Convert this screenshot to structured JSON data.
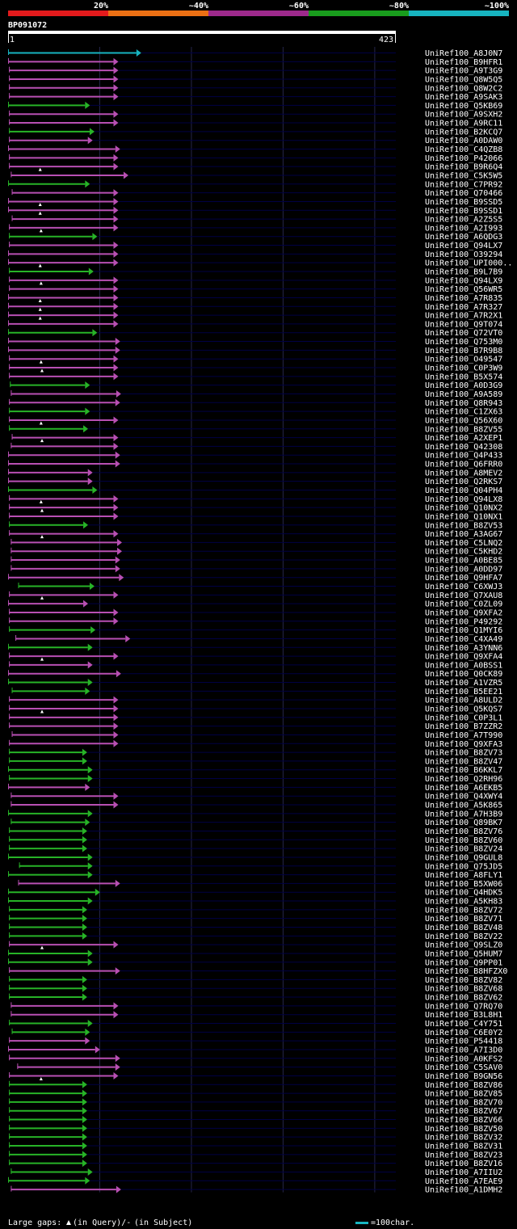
{
  "legend": {
    "bands": [
      {
        "label": "20%",
        "color": "#e31a1c"
      },
      {
        "label": "~40%",
        "color": "#ec7014"
      },
      {
        "label": "~60%",
        "color": "#9e2a8c"
      },
      {
        "label": "~80%",
        "color": "#199d1d"
      },
      {
        "label": "~100%",
        "color": "#17b4c0"
      }
    ]
  },
  "query": {
    "name": "BP091072",
    "start_label": "1",
    "end_label": "423",
    "length": 423
  },
  "footer": {
    "large_gaps": "Large gaps:",
    "query_note": "(in Query)/-",
    "subject_note": "(in Subject)",
    "scale_note": "=100char."
  },
  "colors": {
    "cyan": "#17b4c0",
    "magenta": "#b84fb3",
    "green": "#27b327",
    "grid": "#25254a",
    "gap": "#000044"
  },
  "hits": [
    {
      "id": "UniRef100_A8J0N7",
      "c": "cyan",
      "s": 1,
      "e": 140
    },
    {
      "id": "UniRef100_B9HFR1",
      "c": "magenta",
      "s": 1,
      "e": 115
    },
    {
      "id": "UniRef100_A9T3G9",
      "c": "magenta",
      "s": 2,
      "e": 115
    },
    {
      "id": "UniRef100_Q8W5Q5",
      "c": "magenta",
      "s": 2,
      "e": 115
    },
    {
      "id": "UniRef100_Q8W2C2",
      "c": "magenta",
      "s": 2,
      "e": 115
    },
    {
      "id": "UniRef100_A9SAK3",
      "c": "magenta",
      "s": 2,
      "e": 115
    },
    {
      "id": "UniRef100_Q5KB69",
      "c": "green",
      "s": 1,
      "e": 84
    },
    {
      "id": "UniRef100_A9SXH2",
      "c": "magenta",
      "s": 2,
      "e": 115
    },
    {
      "id": "UniRef100_A9RC11",
      "c": "magenta",
      "s": 2,
      "e": 115
    },
    {
      "id": "UniRef100_B2KCQ7",
      "c": "green",
      "s": 2,
      "e": 89
    },
    {
      "id": "UniRef100_A0DAW0",
      "c": "magenta",
      "s": 2,
      "e": 87
    },
    {
      "id": "UniRef100_C4QZB8",
      "c": "magenta",
      "s": 1,
      "e": 117
    },
    {
      "id": "UniRef100_P42066",
      "c": "magenta",
      "s": 2,
      "e": 115
    },
    {
      "id": "UniRef100_B9R6Q4",
      "c": "magenta",
      "s": 2,
      "e": 115,
      "q": 35
    },
    {
      "id": "UniRef100_C5K5W5",
      "c": "magenta",
      "s": 4,
      "e": 126
    },
    {
      "id": "UniRef100_C7PR92",
      "c": "green",
      "s": 1,
      "e": 84
    },
    {
      "id": "UniRef100_Q70466",
      "c": "magenta",
      "s": 5,
      "e": 115
    },
    {
      "id": "UniRef100_B9SSD5",
      "c": "magenta",
      "s": 1,
      "e": 115,
      "q": 35
    },
    {
      "id": "UniRef100_B9SSD1",
      "c": "magenta",
      "s": 1,
      "e": 115,
      "q": 35
    },
    {
      "id": "UniRef100_A2Z5S5",
      "c": "magenta",
      "s": 5,
      "e": 115
    },
    {
      "id": "UniRef100_A2I993",
      "c": "magenta",
      "s": 2,
      "e": 115,
      "q": 36
    },
    {
      "id": "UniRef100_A6QDG3",
      "c": "green",
      "s": 2,
      "e": 92
    },
    {
      "id": "UniRef100_Q94LX7",
      "c": "magenta",
      "s": 2,
      "e": 115
    },
    {
      "id": "UniRef100_O39294",
      "c": "magenta",
      "s": 1,
      "e": 115
    },
    {
      "id": "UniRef100_UPI000..",
      "c": "magenta",
      "s": 1,
      "e": 115,
      "q": 35
    },
    {
      "id": "UniRef100_B9L7B9",
      "c": "green",
      "s": 2,
      "e": 88
    },
    {
      "id": "UniRef100_Q94LX9",
      "c": "magenta",
      "s": 2,
      "e": 115,
      "q": 36
    },
    {
      "id": "UniRef100_Q56WR5",
      "c": "magenta",
      "s": 2,
      "e": 115
    },
    {
      "id": "UniRef100_A7R835",
      "c": "magenta",
      "s": 1,
      "e": 115,
      "q": 35
    },
    {
      "id": "UniRef100_A7R327",
      "c": "magenta",
      "s": 1,
      "e": 115,
      "q": 35
    },
    {
      "id": "UniRef100_A7R2X1",
      "c": "magenta",
      "s": 1,
      "e": 115,
      "q": 35
    },
    {
      "id": "UniRef100_Q9T074",
      "c": "magenta",
      "s": 1,
      "e": 115
    },
    {
      "id": "UniRef100_Q72VT0",
      "c": "green",
      "s": 1,
      "e": 92
    },
    {
      "id": "UniRef100_Q753M0",
      "c": "magenta",
      "s": 1,
      "e": 117
    },
    {
      "id": "UniRef100_B7R9B8",
      "c": "magenta",
      "s": 1,
      "e": 117
    },
    {
      "id": "UniRef100_O49547",
      "c": "magenta",
      "s": 2,
      "e": 115,
      "q": 36
    },
    {
      "id": "UniRef100_C0P3W9",
      "c": "magenta",
      "s": 2,
      "e": 115,
      "q": 37
    },
    {
      "id": "UniRef100_B5X574",
      "c": "magenta",
      "s": 2,
      "e": 115
    },
    {
      "id": "UniRef100_A0D3G9",
      "c": "green",
      "s": 3,
      "e": 84
    },
    {
      "id": "UniRef100_A9A589",
      "c": "magenta",
      "s": 4,
      "e": 118
    },
    {
      "id": "UniRef100_Q8R943",
      "c": "magenta",
      "s": 2,
      "e": 117
    },
    {
      "id": "UniRef100_C1ZX63",
      "c": "green",
      "s": 2,
      "e": 84
    },
    {
      "id": "UniRef100_Q56X60",
      "c": "magenta",
      "s": 2,
      "e": 115,
      "q": 36
    },
    {
      "id": "UniRef100_B8ZV55",
      "c": "green",
      "s": 2,
      "e": 82
    },
    {
      "id": "UniRef100_A2XEP1",
      "c": "magenta",
      "s": 5,
      "e": 115,
      "q": 37
    },
    {
      "id": "UniRef100_Q42308",
      "c": "magenta",
      "s": 4,
      "e": 115
    },
    {
      "id": "UniRef100_Q4P433",
      "c": "magenta",
      "s": 1,
      "e": 117
    },
    {
      "id": "UniRef100_Q6FRR0",
      "c": "magenta",
      "s": 1,
      "e": 117
    },
    {
      "id": "UniRef100_A8MEV2",
      "c": "magenta",
      "s": 1,
      "e": 87
    },
    {
      "id": "UniRef100_Q2RKS7",
      "c": "magenta",
      "s": 1,
      "e": 87
    },
    {
      "id": "UniRef100_Q04PH4",
      "c": "green",
      "s": 1,
      "e": 92
    },
    {
      "id": "UniRef100_Q94LX8",
      "c": "magenta",
      "s": 2,
      "e": 115,
      "q": 36
    },
    {
      "id": "UniRef100_Q10NX2",
      "c": "magenta",
      "s": 2,
      "e": 115,
      "q": 37
    },
    {
      "id": "UniRef100_Q10NX1",
      "c": "magenta",
      "s": 2,
      "e": 115
    },
    {
      "id": "UniRef100_B8ZV53",
      "c": "green",
      "s": 2,
      "e": 82
    },
    {
      "id": "UniRef100_A3AG67",
      "c": "magenta",
      "s": 2,
      "e": 115,
      "q": 37
    },
    {
      "id": "UniRef100_C5LNQ2",
      "c": "magenta",
      "s": 4,
      "e": 119
    },
    {
      "id": "UniRef100_C5KHD2",
      "c": "magenta",
      "s": 4,
      "e": 119
    },
    {
      "id": "UniRef100_A0BE85",
      "c": "magenta",
      "s": 4,
      "e": 117
    },
    {
      "id": "UniRef100_A0DD97",
      "c": "magenta",
      "s": 4,
      "e": 117
    },
    {
      "id": "UniRef100_Q9HFA7",
      "c": "magenta",
      "s": 1,
      "e": 121
    },
    {
      "id": "UniRef100_C6XWJ3",
      "c": "green",
      "s": 12,
      "e": 89
    },
    {
      "id": "UniRef100_Q7XAU8",
      "c": "magenta",
      "s": 2,
      "e": 115,
      "q": 37
    },
    {
      "id": "UniRef100_C0ZL09",
      "c": "magenta",
      "s": 1,
      "e": 82
    },
    {
      "id": "UniRef100_Q9XFA2",
      "c": "magenta",
      "s": 2,
      "e": 115
    },
    {
      "id": "UniRef100_P49292",
      "c": "magenta",
      "s": 2,
      "e": 115
    },
    {
      "id": "UniRef100_Q1MYI6",
      "c": "green",
      "s": 2,
      "e": 90
    },
    {
      "id": "UniRef100_C4XA49",
      "c": "magenta",
      "s": 9,
      "e": 128
    },
    {
      "id": "UniRef100_A3YNN6",
      "c": "green",
      "s": 1,
      "e": 87
    },
    {
      "id": "UniRef100_Q9XFA4",
      "c": "magenta",
      "s": 2,
      "e": 115,
      "q": 37
    },
    {
      "id": "UniRef100_A0BSS1",
      "c": "magenta",
      "s": 2,
      "e": 87
    },
    {
      "id": "UniRef100_Q0CK89",
      "c": "magenta",
      "s": 1,
      "e": 118
    },
    {
      "id": "UniRef100_A1VZR5",
      "c": "green",
      "s": 1,
      "e": 87
    },
    {
      "id": "UniRef100_B5EE21",
      "c": "green",
      "s": 5,
      "e": 84
    },
    {
      "id": "UniRef100_A8ULD2",
      "c": "magenta",
      "s": 2,
      "e": 115
    },
    {
      "id": "UniRef100_Q5KQS7",
      "c": "magenta",
      "s": 2,
      "e": 115,
      "q": 37
    },
    {
      "id": "UniRef100_C0P3L1",
      "c": "magenta",
      "s": 2,
      "e": 115
    },
    {
      "id": "UniRef100_B7ZZR2",
      "c": "magenta",
      "s": 2,
      "e": 115
    },
    {
      "id": "UniRef100_A7T990",
      "c": "magenta",
      "s": 5,
      "e": 115
    },
    {
      "id": "UniRef100_Q9XFA3",
      "c": "magenta",
      "s": 2,
      "e": 115
    },
    {
      "id": "UniRef100_B8ZV73",
      "c": "green",
      "s": 2,
      "e": 81
    },
    {
      "id": "UniRef100_B8ZV47",
      "c": "green",
      "s": 2,
      "e": 81
    },
    {
      "id": "UniRef100_B6KKL7",
      "c": "green",
      "s": 1,
      "e": 87
    },
    {
      "id": "UniRef100_Q2RH96",
      "c": "green",
      "s": 2,
      "e": 87
    },
    {
      "id": "UniRef100_A6EKB5",
      "c": "magenta",
      "s": 1,
      "e": 84
    },
    {
      "id": "UniRef100_Q4XWY4",
      "c": "magenta",
      "s": 4,
      "e": 115
    },
    {
      "id": "UniRef100_A5K865",
      "c": "magenta",
      "s": 4,
      "e": 115
    },
    {
      "id": "UniRef100_A7H3B9",
      "c": "green",
      "s": 1,
      "e": 87
    },
    {
      "id": "UniRef100_Q89BK7",
      "c": "green",
      "s": 4,
      "e": 84
    },
    {
      "id": "UniRef100_B8ZV76",
      "c": "green",
      "s": 2,
      "e": 81
    },
    {
      "id": "UniRef100_B8ZV60",
      "c": "green",
      "s": 2,
      "e": 81
    },
    {
      "id": "UniRef100_B8ZV24",
      "c": "green",
      "s": 2,
      "e": 81
    },
    {
      "id": "UniRef100_Q9GUL8",
      "c": "green",
      "s": 1,
      "e": 87
    },
    {
      "id": "UniRef100_Q75JD5",
      "c": "green",
      "s": 13,
      "e": 87
    },
    {
      "id": "UniRef100_A8FLY1",
      "c": "green",
      "s": 1,
      "e": 87
    },
    {
      "id": "UniRef100_B5XW06",
      "c": "magenta",
      "s": 12,
      "e": 117
    },
    {
      "id": "UniRef100_Q4HDK5",
      "c": "green",
      "s": 1,
      "e": 95
    },
    {
      "id": "UniRef100_A5KH83",
      "c": "green",
      "s": 1,
      "e": 87
    },
    {
      "id": "UniRef100_B8ZV72",
      "c": "green",
      "s": 2,
      "e": 81
    },
    {
      "id": "UniRef100_B8ZV71",
      "c": "green",
      "s": 2,
      "e": 81
    },
    {
      "id": "UniRef100_B8ZV48",
      "c": "green",
      "s": 2,
      "e": 81
    },
    {
      "id": "UniRef100_B8ZV22",
      "c": "green",
      "s": 2,
      "e": 81
    },
    {
      "id": "UniRef100_Q9SLZ0",
      "c": "magenta",
      "s": 2,
      "e": 115,
      "q": 37
    },
    {
      "id": "UniRef100_Q5HUM7",
      "c": "green",
      "s": 1,
      "e": 87
    },
    {
      "id": "UniRef100_Q9PP01",
      "c": "green",
      "s": 1,
      "e": 87
    },
    {
      "id": "UniRef100_B8HFZX0",
      "c": "magenta",
      "s": 2,
      "e": 117
    },
    {
      "id": "UniRef100_B8ZV82",
      "c": "green",
      "s": 2,
      "e": 81
    },
    {
      "id": "UniRef100_B8ZV68",
      "c": "green",
      "s": 2,
      "e": 81
    },
    {
      "id": "UniRef100_B8ZV62",
      "c": "green",
      "s": 2,
      "e": 81
    },
    {
      "id": "UniRef100_Q7RQ70",
      "c": "magenta",
      "s": 4,
      "e": 115
    },
    {
      "id": "UniRef100_B3L8H1",
      "c": "magenta",
      "s": 4,
      "e": 115
    },
    {
      "id": "UniRef100_C4Y751",
      "c": "green",
      "s": 2,
      "e": 87
    },
    {
      "id": "UniRef100_C6E0Y2",
      "c": "green",
      "s": 5,
      "e": 84
    },
    {
      "id": "UniRef100_P54418",
      "c": "magenta",
      "s": 2,
      "e": 84
    },
    {
      "id": "UniRef100_A7I3D0",
      "c": "magenta",
      "s": 1,
      "e": 95
    },
    {
      "id": "UniRef100_A0KFS2",
      "c": "magenta",
      "s": 2,
      "e": 117
    },
    {
      "id": "UniRef100_C5SAV0",
      "c": "magenta",
      "s": 11,
      "e": 117
    },
    {
      "id": "UniRef100_B9GN56",
      "c": "magenta",
      "s": 2,
      "e": 115,
      "q": 36
    },
    {
      "id": "UniRef100_B8ZV86",
      "c": "green",
      "s": 2,
      "e": 81
    },
    {
      "id": "UniRef100_B8ZV85",
      "c": "green",
      "s": 2,
      "e": 81
    },
    {
      "id": "UniRef100_B8ZV70",
      "c": "green",
      "s": 2,
      "e": 81
    },
    {
      "id": "UniRef100_B8ZV67",
      "c": "green",
      "s": 2,
      "e": 81
    },
    {
      "id": "UniRef100_B8ZV66",
      "c": "green",
      "s": 2,
      "e": 81
    },
    {
      "id": "UniRef100_B8ZV50",
      "c": "green",
      "s": 2,
      "e": 81
    },
    {
      "id": "UniRef100_B8ZV32",
      "c": "green",
      "s": 2,
      "e": 81
    },
    {
      "id": "UniRef100_B8ZV31",
      "c": "green",
      "s": 2,
      "e": 81
    },
    {
      "id": "UniRef100_B8ZV23",
      "c": "green",
      "s": 2,
      "e": 81
    },
    {
      "id": "UniRef100_B8ZV16",
      "c": "green",
      "s": 2,
      "e": 81
    },
    {
      "id": "UniRef100_A7IIU2",
      "c": "green",
      "s": 4,
      "e": 87
    },
    {
      "id": "UniRef100_A7EAE9",
      "c": "green",
      "s": 1,
      "e": 84
    },
    {
      "id": "UniRef100_A1DMH2",
      "c": "magenta",
      "s": 4,
      "e": 118
    }
  ]
}
